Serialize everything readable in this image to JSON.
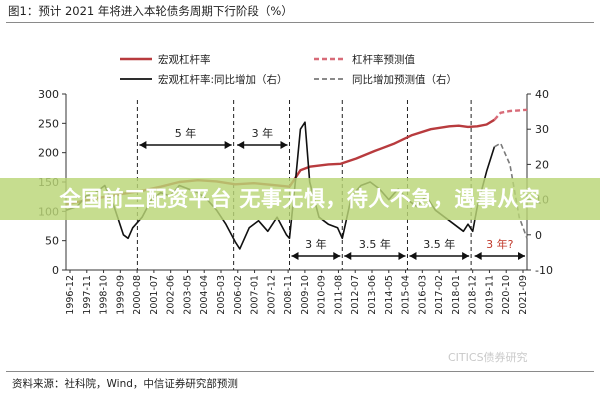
{
  "figure_title": "图1：预计 2021 年将进入本轮债务周期下行阶段（%）",
  "source_note": "资料来源：社科院，Wind，中信证券研究部预测",
  "watermark": "CITICS债券研究",
  "banner_text": "全国前三配资平台 无事无惧，待人不急，遇事从容",
  "colors": {
    "leverage": "#b83b3e",
    "leverage_forecast": "#d86b78",
    "yoy": "#111111",
    "yoy_forecast": "#7a7a7a",
    "guide": "#222222",
    "banner": "#bad676"
  },
  "chart_data": {
    "type": "line",
    "legend": [
      {
        "label": "宏观杠杆率",
        "style": "solid",
        "color": "#b83b3e"
      },
      {
        "label": "杠杆率预测值",
        "style": "dashed",
        "color": "#d86b78"
      },
      {
        "label": "宏观杠杆率:同比增加（右）",
        "style": "solid",
        "color": "#111111"
      },
      {
        "label": "同比增加预测值（右）",
        "style": "dashed",
        "color": "#7a7a7a"
      }
    ],
    "legend_placement": "top",
    "y_left": {
      "ticks": [
        0,
        50,
        100,
        150,
        200,
        250,
        300
      ],
      "lim": [
        0,
        300
      ]
    },
    "y_right": {
      "ticks": [
        -10,
        0,
        10,
        20,
        30,
        40
      ],
      "lim": [
        -10,
        40
      ]
    },
    "x_ticks": [
      "1996-12",
      "1997-11",
      "1998-10",
      "1999-09",
      "2000-08",
      "2001-07",
      "2002-06",
      "2003-05",
      "2004-04",
      "2005-03",
      "2006-02",
      "2007-01",
      "2007-12",
      "2008-11",
      "2009-10",
      "2010-09",
      "2011-08",
      "2012-07",
      "2013-06",
      "2014-05",
      "2015-04",
      "2016-03",
      "2017-02",
      "2018-01",
      "2018-12",
      "2019-11",
      "2020-10",
      "2021-09"
    ],
    "x_range": [
      1996.917,
      2021.667
    ],
    "grid": false,
    "series": [
      {
        "name": "宏观杠杆率",
        "axis": "left",
        "x": [
          1996.917,
          1998.5,
          2000.0,
          2001.0,
          2002.0,
          2003.0,
          2004.0,
          2005.0,
          2006.0,
          2007.0,
          2008.0,
          2008.917,
          2009.5,
          2010.0,
          2011.0,
          2011.667,
          2012.5,
          2013.5,
          2014.5,
          2015.5,
          2016.5,
          2017.5,
          2018.0,
          2018.5,
          2019.0,
          2019.5,
          2019.917
        ],
        "y": [
          112,
          122,
          130,
          135,
          142,
          150,
          153,
          151,
          146,
          148,
          145,
          142,
          170,
          176,
          180,
          181,
          190,
          203,
          215,
          230,
          240,
          245,
          246,
          244,
          245,
          248,
          256
        ]
      },
      {
        "name": "杠杆率预测值",
        "axis": "left",
        "x": [
          2019.917,
          2020.25,
          2020.75,
          2021.25,
          2021.667
        ],
        "y": [
          256,
          268,
          271,
          272,
          273
        ]
      },
      {
        "name": "宏观杠杆率:同比增加（右）",
        "axis": "right",
        "x": [
          1996.917,
          1997.5,
          1998.0,
          1998.5,
          1999.0,
          1999.5,
          2000.0,
          2000.25,
          2000.5,
          2001.0,
          2001.5,
          2002.0,
          2002.5,
          2003.0,
          2003.5,
          2004.0,
          2004.5,
          2005.0,
          2005.5,
          2006.0,
          2006.25,
          2006.75,
          2007.25,
          2007.75,
          2008.25,
          2008.75,
          2008.917,
          2009.25,
          2009.5,
          2009.75,
          2010.0,
          2010.5,
          2011.0,
          2011.5,
          2011.75,
          2012.25,
          2012.75,
          2013.25,
          2013.75,
          2014.25,
          2014.75,
          2015.25,
          2015.75,
          2016.25,
          2016.75,
          2017.25,
          2017.75,
          2018.25,
          2018.5,
          2018.75,
          2019.0,
          2019.5,
          2019.917
        ],
        "y": [
          7,
          8,
          11,
          12,
          14,
          8,
          0,
          -1,
          2,
          5,
          10,
          12,
          11,
          14,
          13,
          12,
          10,
          7,
          3,
          -2,
          -4,
          2,
          4,
          1,
          5,
          0,
          -1,
          16,
          30,
          32,
          15,
          5,
          3,
          2,
          -1,
          11,
          14,
          15,
          13,
          10,
          13,
          10,
          8,
          11,
          7,
          5,
          3,
          1,
          3,
          1,
          8,
          18,
          25
        ]
      },
      {
        "name": "同比增加预测值（右）",
        "axis": "right",
        "x": [
          2019.917,
          2020.25,
          2020.75,
          2021.25,
          2021.667
        ],
        "y": [
          25,
          26,
          20,
          5,
          -1
        ]
      }
    ],
    "annotations": [
      {
        "text": "5 年",
        "x_start": 2000.75,
        "x_end": 2005.917
      },
      {
        "text": "3 年",
        "x_start": 2006.0,
        "x_end": 2008.917
      },
      {
        "text": "3 年",
        "x_start": 2008.917,
        "x_end": 2011.75
      },
      {
        "text": "3.5 年",
        "x_start": 2011.75,
        "x_end": 2015.25
      },
      {
        "text": "3.5 年",
        "x_start": 2015.25,
        "x_end": 2018.667
      },
      {
        "text": "3 年?",
        "x_start": 2018.75,
        "x_end": 2021.667
      }
    ],
    "divider_dates": [
      2000.75,
      2005.917,
      2008.917,
      2011.75,
      2015.25,
      2018.667
    ]
  }
}
